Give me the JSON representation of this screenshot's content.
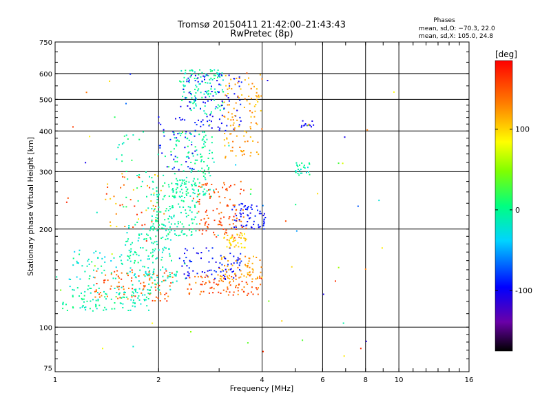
{
  "chart_data": {
    "type": "scatter",
    "title": "Tromsø 20150411 21:42:00–21:43:43",
    "subtitle": "RwPretec (8p)",
    "phase_box": {
      "heading": "Phases",
      "line_o": "mean, sd,O: −70.3, 22.0",
      "line_x": "mean, sd,X: 105.0, 24.8"
    },
    "xlabel": "Frequency [MHz]",
    "ylabel": "Stationary phase Virtual Height [km]",
    "x_scale": "log",
    "y_scale": "log",
    "xlim": [
      1,
      16
    ],
    "ylim": [
      73,
      750
    ],
    "x_ticks": [
      1,
      2,
      4,
      6,
      8,
      10,
      16
    ],
    "y_ticks": [
      75,
      100,
      200,
      300,
      400,
      500,
      600,
      750
    ],
    "x_gridlines": [
      2,
      4,
      6,
      8,
      10
    ],
    "y_gridlines": [
      100,
      200,
      300,
      400,
      500,
      600
    ],
    "grid": true,
    "colorbar": {
      "label": "[deg]",
      "min": -175,
      "max": 185,
      "ticks": [
        -100,
        0,
        100
      ],
      "position": "right"
    },
    "clusters": [
      {
        "f_min": 1.05,
        "f_max": 1.9,
        "h_min": 112,
        "h_max": 135,
        "phase_min": -30,
        "phase_max": 10,
        "n": 120
      },
      {
        "f_min": 1.3,
        "f_max": 2.2,
        "h_min": 120,
        "h_max": 150,
        "phase_min": 120,
        "phase_max": 170,
        "n": 90
      },
      {
        "f_min": 1.1,
        "f_max": 2.0,
        "h_min": 140,
        "h_max": 175,
        "phase_min": -40,
        "phase_max": 10,
        "n": 70
      },
      {
        "f_min": 1.6,
        "f_max": 2.2,
        "h_min": 150,
        "h_max": 210,
        "phase_min": -30,
        "phase_max": 10,
        "n": 90
      },
      {
        "f_min": 1.4,
        "f_max": 2.1,
        "h_min": 200,
        "h_max": 300,
        "phase_min": 90,
        "phase_max": 170,
        "n": 45
      },
      {
        "f_min": 1.5,
        "f_max": 2.2,
        "h_min": 230,
        "h_max": 400,
        "phase_min": -20,
        "phase_max": 20,
        "n": 40
      },
      {
        "f_min": 1.7,
        "f_max": 2.4,
        "h_min": 130,
        "h_max": 150,
        "phase_min": -30,
        "phase_max": 0,
        "n": 40
      },
      {
        "f_min": 1.9,
        "f_max": 2.6,
        "h_min": 190,
        "h_max": 280,
        "phase_min": -20,
        "phase_max": 10,
        "n": 150
      },
      {
        "f_min": 2.2,
        "f_max": 2.9,
        "h_min": 250,
        "h_max": 400,
        "phase_min": -20,
        "phase_max": 10,
        "n": 130
      },
      {
        "f_min": 2.3,
        "f_max": 3.1,
        "h_min": 450,
        "h_max": 620,
        "phase_min": -25,
        "phase_max": 10,
        "n": 120
      },
      {
        "f_min": 2.3,
        "f_max": 3.5,
        "h_min": 400,
        "h_max": 600,
        "phase_min": -110,
        "phase_max": -80,
        "n": 90
      },
      {
        "f_min": 2.6,
        "f_max": 3.6,
        "h_min": 185,
        "h_max": 280,
        "phase_min": 130,
        "phase_max": 170,
        "n": 110
      },
      {
        "f_min": 2.3,
        "f_max": 3.5,
        "h_min": 140,
        "h_max": 175,
        "phase_min": -110,
        "phase_max": -80,
        "n": 80
      },
      {
        "f_min": 2.4,
        "f_max": 4.0,
        "h_min": 125,
        "h_max": 145,
        "phase_min": 120,
        "phase_max": 170,
        "n": 90
      },
      {
        "f_min": 3.0,
        "f_max": 4.0,
        "h_min": 140,
        "h_max": 165,
        "phase_min": 100,
        "phase_max": 140,
        "n": 60
      },
      {
        "f_min": 3.1,
        "f_max": 3.6,
        "h_min": 175,
        "h_max": 195,
        "phase_min": 90,
        "phase_max": 110,
        "n": 40
      },
      {
        "f_min": 3.1,
        "f_max": 4.0,
        "h_min": 330,
        "h_max": 600,
        "phase_min": 100,
        "phase_max": 140,
        "n": 110
      },
      {
        "f_min": 3.3,
        "f_max": 4.1,
        "h_min": 200,
        "h_max": 240,
        "phase_min": -110,
        "phase_max": -80,
        "n": 60
      },
      {
        "f_min": 2.0,
        "f_max": 2.6,
        "h_min": 300,
        "h_max": 450,
        "phase_min": -110,
        "phase_max": -80,
        "n": 40
      },
      {
        "f_min": 5.0,
        "f_max": 5.5,
        "h_min": 290,
        "h_max": 320,
        "phase_min": -30,
        "phase_max": 10,
        "n": 25
      },
      {
        "f_min": 5.2,
        "f_max": 5.7,
        "h_min": 410,
        "h_max": 430,
        "phase_min": -110,
        "phase_max": -90,
        "n": 12
      },
      {
        "f_min": 1.0,
        "f_max": 10.0,
        "h_min": 80,
        "h_max": 650,
        "phase_min": -120,
        "phase_max": 170,
        "n": 70
      }
    ]
  }
}
